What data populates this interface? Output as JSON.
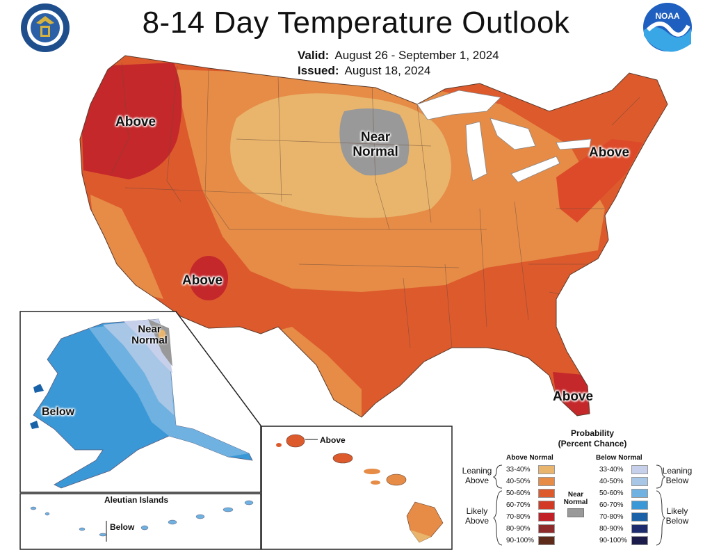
{
  "header": {
    "title": "8-14 Day Temperature Outlook",
    "valid_label": "Valid:",
    "valid_value": "August 26 - September 1, 2024",
    "issued_label": "Issued:",
    "issued_value": "August 18, 2024",
    "logos": [
      "department-of-commerce-seal",
      "noaa-logo"
    ]
  },
  "map": {
    "labels": {
      "above_northwest": "Above",
      "near_normal_plains": "Near Normal",
      "above_northeast": "Above",
      "above_southwest": "Above",
      "above_florida": "Above"
    },
    "alaska": {
      "near_normal": "Near Normal",
      "below": "Below"
    },
    "aleutian": {
      "title": "Aleutian Islands",
      "below": "Below"
    },
    "hawaii": {
      "above": "Above"
    }
  },
  "legend": {
    "title_line1": "Probability",
    "title_line2": "(Percent Chance)",
    "above_header": "Above Normal",
    "below_header": "Below Normal",
    "near_normal": "Near Normal",
    "near_normal_color": "#999999",
    "leaning_above": "Leaning Above",
    "likely_above": "Likely Above",
    "leaning_below": "Leaning Below",
    "likely_below": "Likely Below",
    "above_bins": [
      {
        "range": "33-40%",
        "color": "#e9b56c"
      },
      {
        "range": "40-50%",
        "color": "#e68c47"
      },
      {
        "range": "50-60%",
        "color": "#dd5a2d"
      },
      {
        "range": "60-70%",
        "color": "#d33a25"
      },
      {
        "range": "70-80%",
        "color": "#c12027"
      },
      {
        "range": "80-90%",
        "color": "#8e2a2a"
      },
      {
        "range": "90-100%",
        "color": "#5e2a1a"
      }
    ],
    "below_bins": [
      {
        "range": "33-40%",
        "color": "#c6d0ea"
      },
      {
        "range": "40-50%",
        "color": "#a8c6e6"
      },
      {
        "range": "50-60%",
        "color": "#6fb1e0"
      },
      {
        "range": "60-70%",
        "color": "#3b98d6"
      },
      {
        "range": "70-80%",
        "color": "#1a62a8"
      },
      {
        "range": "80-90%",
        "color": "#1c2a6e"
      },
      {
        "range": "90-100%",
        "color": "#1c1c4a"
      }
    ]
  }
}
